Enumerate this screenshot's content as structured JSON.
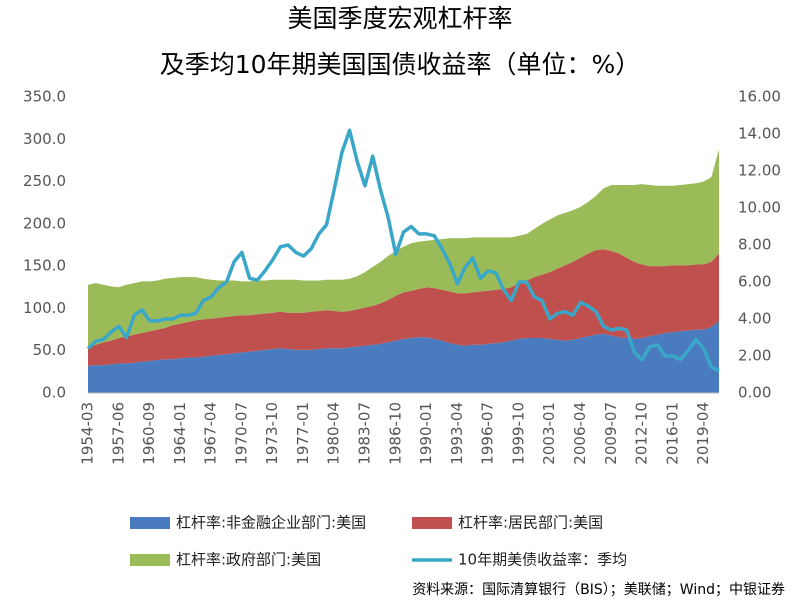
{
  "chart_data": {
    "type": "stacked-area-line",
    "title": "美国季度宏观杠杆率",
    "subtitle": "及季均10年期美国国债收益率（单位：%）",
    "source": "资料来源：国际清算银行（BIS）；美联储；Wind；中银证券",
    "categories": [
      "1954-03",
      null,
      null,
      null,
      "1957-06",
      null,
      null,
      null,
      "1960-09",
      null,
      null,
      null,
      "1964-01",
      null,
      null,
      null,
      "1967-04",
      null,
      null,
      null,
      "1970-07",
      null,
      null,
      null,
      "1973-10",
      null,
      null,
      null,
      "1977-01",
      null,
      null,
      null,
      "1980-04",
      null,
      null,
      null,
      "1983-07",
      null,
      null,
      null,
      "1986-10",
      null,
      null,
      null,
      "1990-01",
      null,
      null,
      null,
      "1993-04",
      null,
      null,
      null,
      "1996-07",
      null,
      null,
      null,
      "1999-10",
      null,
      null,
      null,
      "2003-01",
      null,
      null,
      null,
      "2006-04",
      null,
      null,
      null,
      "2009-07",
      null,
      null,
      null,
      "2012-10",
      null,
      null,
      null,
      "2016-01",
      null,
      null,
      null,
      "2019-04",
      null,
      null
    ],
    "series": [
      {
        "name": "杠杆率:非金融企业部门:美国",
        "color": "#4a7bbf",
        "kind": "area",
        "values": [
          32,
          33,
          33,
          34,
          35,
          35,
          36,
          37,
          38,
          39,
          40,
          40,
          41,
          42,
          42,
          43,
          44,
          45,
          46,
          47,
          48,
          49,
          50,
          51,
          52,
          53,
          52,
          51,
          51,
          51,
          52,
          53,
          53,
          53,
          54,
          55,
          56,
          57,
          58,
          60,
          62,
          64,
          65,
          66,
          66,
          64,
          62,
          59,
          57,
          56,
          57,
          57,
          58,
          59,
          60,
          62,
          64,
          65,
          65,
          65,
          64,
          63,
          62,
          63,
          65,
          67,
          69,
          70,
          68,
          66,
          65,
          64,
          65,
          67,
          69,
          71,
          72,
          73,
          74,
          75,
          75,
          78,
          85
        ]
      },
      {
        "name": "杠杆率:居民部门:美国",
        "color": "#c0504d",
        "kind": "area",
        "values": [
          23,
          24,
          27,
          28,
          30,
          32,
          33,
          34,
          35,
          36,
          37,
          40,
          41,
          42,
          44,
          44,
          44,
          44,
          44,
          44,
          44,
          43,
          43,
          43,
          43,
          43,
          43,
          44,
          44,
          45,
          45,
          45,
          44,
          43,
          43,
          44,
          45,
          46,
          48,
          50,
          53,
          55,
          56,
          57,
          59,
          60,
          60,
          61,
          61,
          62,
          62,
          63,
          63,
          63,
          63,
          63,
          66,
          68,
          72,
          75,
          79,
          84,
          89,
          92,
          95,
          98,
          100,
          100,
          100,
          99,
          95,
          91,
          87,
          83,
          81,
          79,
          79,
          78,
          77,
          77,
          77,
          77,
          80
        ]
      },
      {
        "name": "杠杆率:政府部门:美国",
        "color": "#9bbb59",
        "kind": "area",
        "values": [
          73,
          73,
          68,
          64,
          60,
          61,
          61,
          61,
          59,
          58,
          58,
          56,
          55,
          53,
          51,
          48,
          46,
          44,
          43,
          42,
          40,
          40,
          40,
          39,
          39,
          38,
          39,
          39,
          38,
          37,
          36,
          36,
          37,
          38,
          38,
          39,
          42,
          46,
          49,
          52,
          53,
          54,
          56,
          56,
          55,
          57,
          60,
          63,
          65,
          65,
          65,
          64,
          63,
          62,
          61,
          59,
          56,
          55,
          57,
          60,
          62,
          63,
          62,
          61,
          60,
          61,
          64,
          72,
          78,
          81,
          86,
          91,
          95,
          96,
          95,
          95,
          94,
          95,
          96,
          96,
          98,
          100,
          123
        ]
      },
      {
        "name": "10年期美债收益率：季均",
        "color": "#3aa6c8",
        "kind": "line",
        "axis": "y2",
        "values": [
          2.4,
          2.8,
          2.9,
          3.3,
          3.6,
          3.0,
          4.2,
          4.5,
          3.9,
          3.9,
          4.0,
          4.0,
          4.2,
          4.2,
          4.3,
          5.0,
          5.2,
          5.7,
          6.0,
          7.1,
          7.6,
          6.2,
          6.1,
          6.6,
          7.2,
          7.9,
          8.0,
          7.6,
          7.4,
          7.8,
          8.6,
          9.1,
          11.0,
          13.0,
          14.2,
          12.5,
          11.2,
          12.8,
          11.0,
          9.5,
          7.5,
          8.7,
          9.0,
          8.6,
          8.6,
          8.5,
          7.8,
          7.0,
          5.9,
          6.8,
          7.3,
          6.2,
          6.6,
          6.5,
          5.6,
          5.0,
          6.0,
          6.0,
          5.2,
          5.0,
          4.0,
          4.3,
          4.4,
          4.2,
          4.9,
          4.7,
          4.4,
          3.6,
          3.4,
          3.5,
          3.4,
          2.2,
          1.8,
          2.5,
          2.6,
          2.0,
          2.0,
          1.8,
          2.3,
          2.9,
          2.4,
          1.4,
          1.2
        ]
      }
    ],
    "ylim": [
      0,
      350
    ],
    "yticks": [
      {
        "value": 0,
        "label": "0.0"
      },
      {
        "value": 50,
        "label": "50.0"
      },
      {
        "value": 100,
        "label": "100.0"
      },
      {
        "value": 150,
        "label": "150.0"
      },
      {
        "value": 200,
        "label": "200.0"
      },
      {
        "value": 250,
        "label": "250.0"
      },
      {
        "value": 300,
        "label": "300.0"
      },
      {
        "value": 350,
        "label": "350.0"
      }
    ],
    "y2lim": [
      0,
      16
    ],
    "y2ticks": [
      {
        "value": 0,
        "label": "0.00"
      },
      {
        "value": 2,
        "label": "2.00"
      },
      {
        "value": 4,
        "label": "4.00"
      },
      {
        "value": 6,
        "label": "6.00"
      },
      {
        "value": 8,
        "label": "8.00"
      },
      {
        "value": 10,
        "label": "10.00"
      },
      {
        "value": 12,
        "label": "12.00"
      },
      {
        "value": 14,
        "label": "14.00"
      },
      {
        "value": 16,
        "label": "16.00"
      }
    ],
    "grid": false,
    "legend": "bottom"
  }
}
